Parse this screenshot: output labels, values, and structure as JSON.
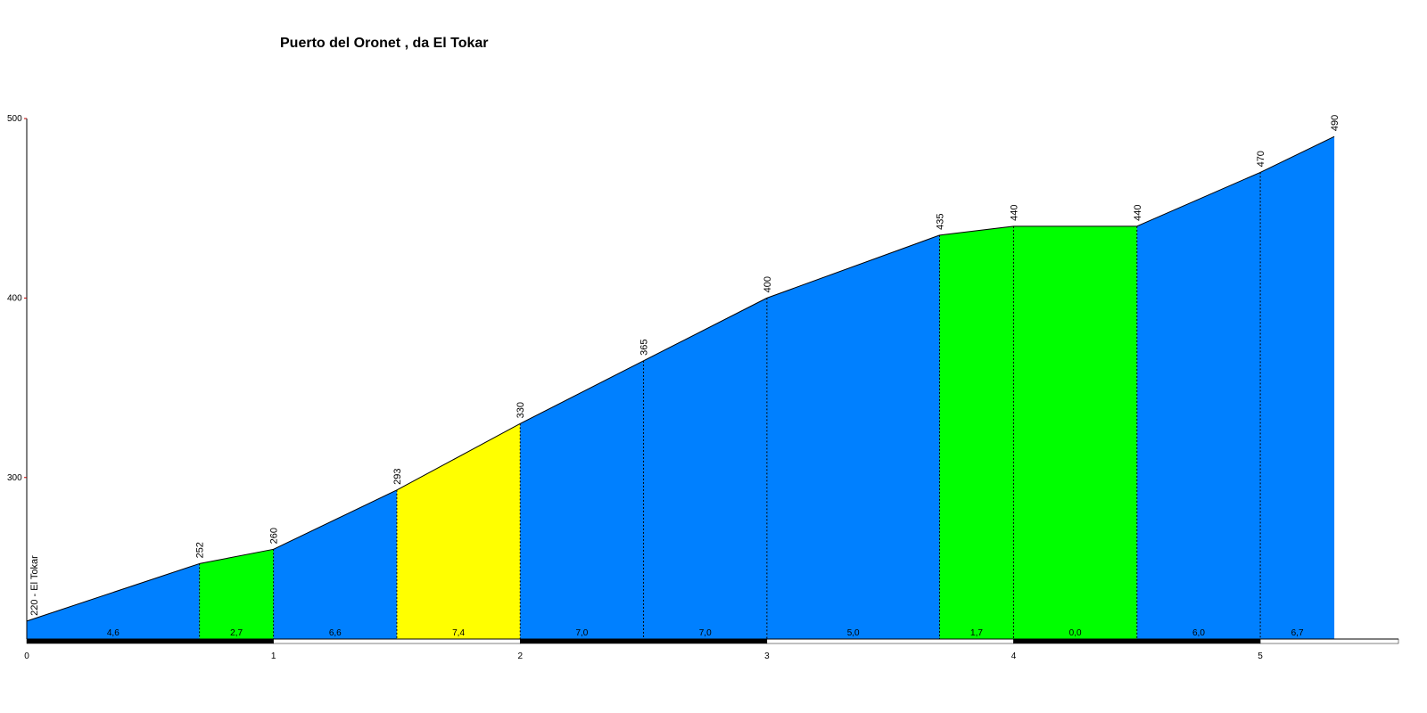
{
  "chart_data": {
    "type": "area",
    "title": "Puerto del Oronet , da El Tokar",
    "x": [
      0,
      0.7,
      1.0,
      1.5,
      2.0,
      2.5,
      3.0,
      3.7,
      4.0,
      4.5,
      5.0,
      5.3
    ],
    "values": [
      220,
      252,
      260,
      293,
      330,
      365,
      400,
      435,
      440,
      440,
      470,
      490
    ],
    "value_labels": [
      "220 - El Tokar",
      "252",
      "260",
      "293",
      "330",
      "365",
      "400",
      "435",
      "440",
      "440",
      "470",
      "490"
    ],
    "segment_grades": [
      4.6,
      2.7,
      6.6,
      7.4,
      7.0,
      7.0,
      5.0,
      1.7,
      0.0,
      6.0,
      6.7
    ],
    "segment_grade_labels": [
      "4,6",
      "2,7",
      "6,6",
      "7,4",
      "7,0",
      "7,0",
      "5,0",
      "1,7",
      "0,0",
      "6,0",
      "6,7"
    ],
    "segment_colors": [
      "#0080ff",
      "#00ff00",
      "#0080ff",
      "#ffff00",
      "#0080ff",
      "#0080ff",
      "#0080ff",
      "#00ff00",
      "#00ff00",
      "#0080ff",
      "#0080ff"
    ],
    "xlim": [
      0,
      5.56
    ],
    "ylim": [
      210,
      500
    ],
    "xticks": [
      0,
      1,
      2,
      3,
      4,
      5
    ],
    "yticks": [
      300,
      400,
      500
    ]
  }
}
